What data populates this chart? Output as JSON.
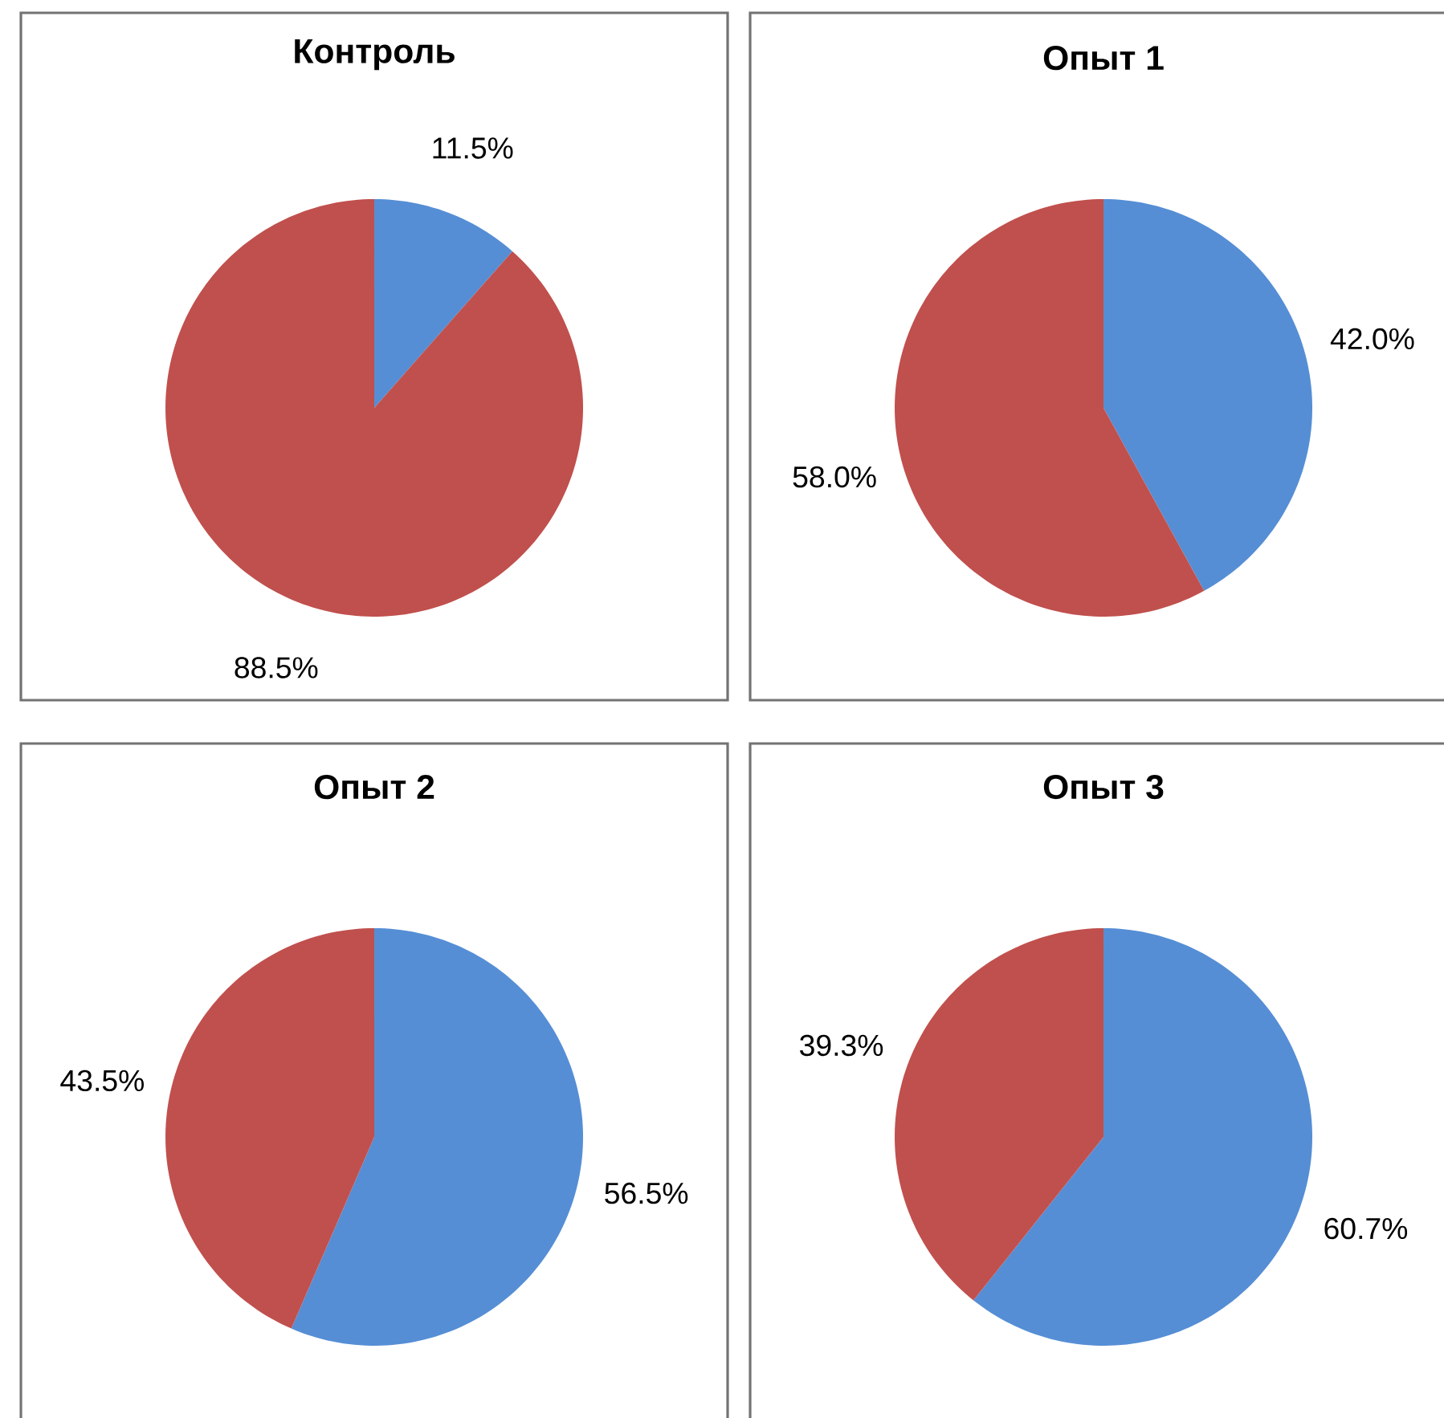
{
  "chart_data": [
    {
      "type": "pie",
      "title": "Контроль",
      "categories": [
        null,
        null
      ],
      "values": [
        11.5,
        88.5
      ],
      "colors": [
        "#558ed5",
        "#c0504d"
      ],
      "value_labels": [
        "11.5%",
        "88.5%"
      ]
    },
    {
      "type": "pie",
      "title": "Опыт 1",
      "categories": [
        null,
        null
      ],
      "values": [
        42.0,
        58.0
      ],
      "colors": [
        "#558ed5",
        "#c0504d"
      ],
      "value_labels": [
        "42.0%",
        "58.0%"
      ]
    },
    {
      "type": "pie",
      "title": "Опыт 2",
      "categories": [
        null,
        null
      ],
      "values": [
        56.5,
        43.5
      ],
      "colors": [
        "#558ed5",
        "#c0504d"
      ],
      "value_labels": [
        "56.5%",
        "43.5%"
      ]
    },
    {
      "type": "pie",
      "title": "Опыт 3",
      "categories": [
        null,
        null
      ],
      "values": [
        60.7,
        39.3
      ],
      "colors": [
        "#558ed5",
        "#c0504d"
      ],
      "value_labels": [
        "60.7%",
        "39.3%"
      ]
    }
  ]
}
